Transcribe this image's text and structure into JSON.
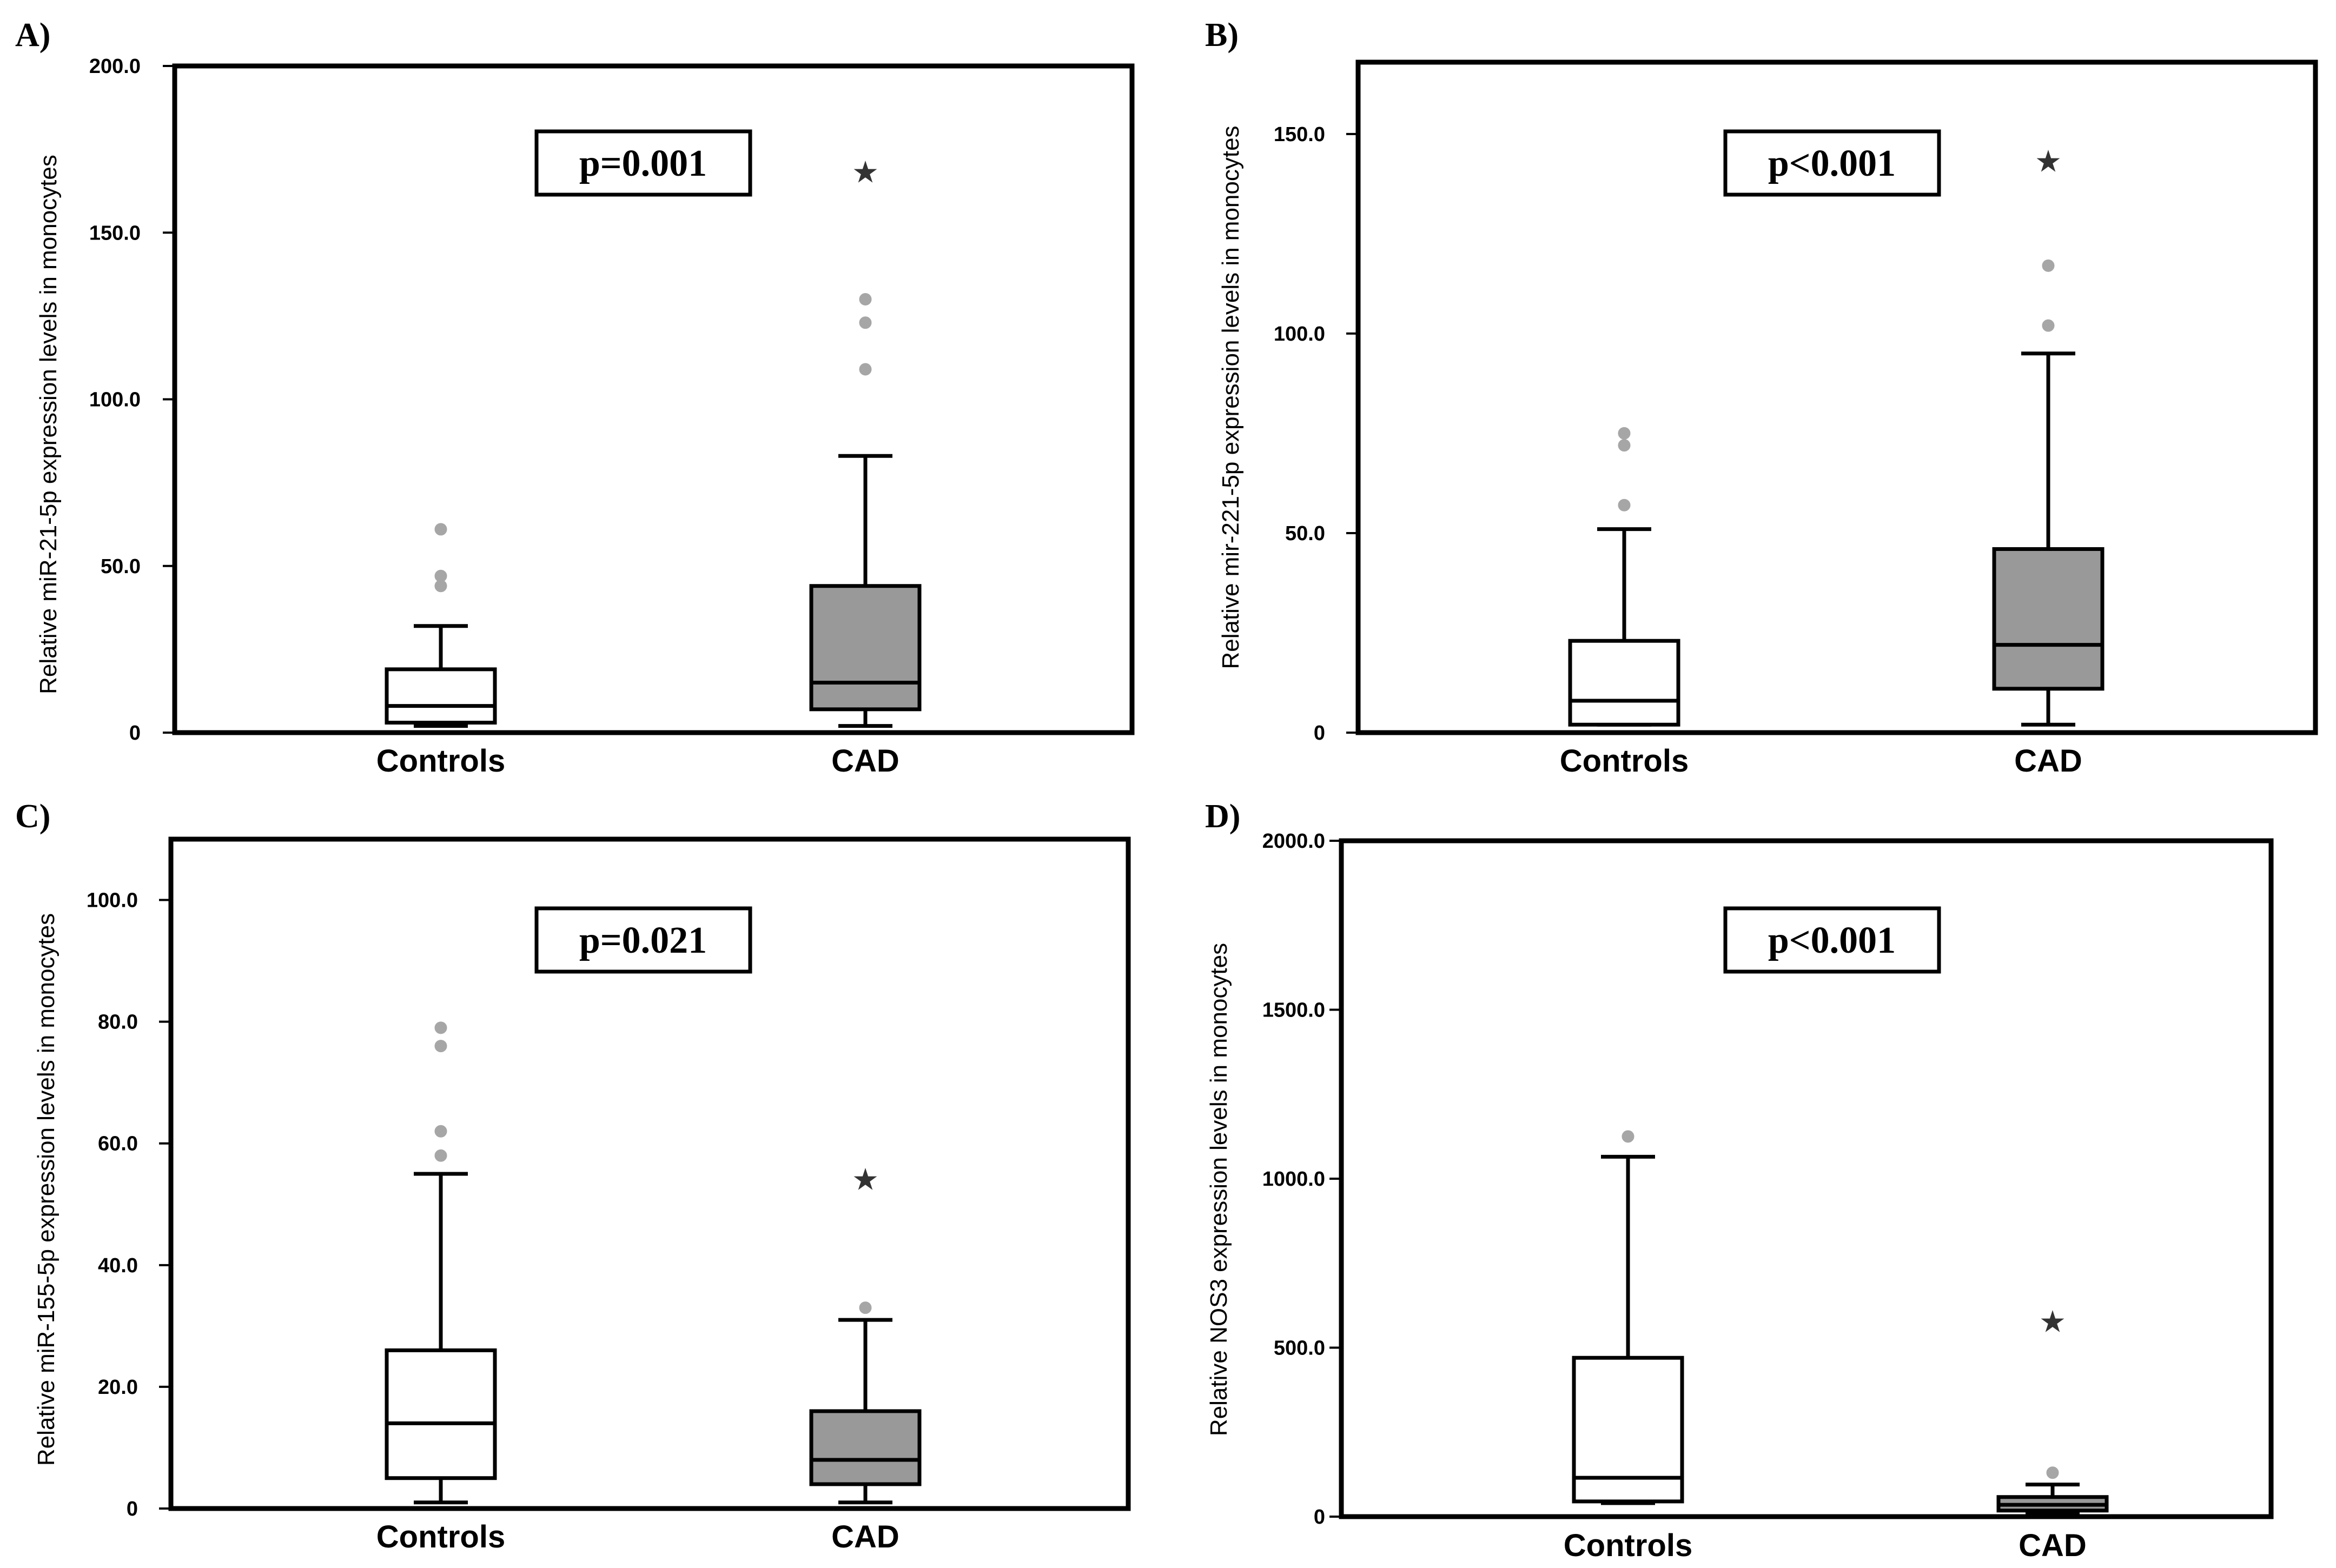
{
  "figure": {
    "categories": [
      "Controls",
      "CAD"
    ],
    "colors": {
      "axis": "#000000",
      "controls_box": "#ffffff",
      "cad_box": "#999999",
      "outlier_circle": "#a6a6a6",
      "extreme_star": "#333333"
    }
  },
  "chart_data": [
    {
      "type": "box",
      "panel": "A)",
      "ylabel": "Relative miR-21-5p expression levels in monocytes",
      "ylim": [
        0,
        200
      ],
      "yticks": [
        0,
        50,
        100,
        150,
        200
      ],
      "yticklabels": [
        "0",
        "50.0",
        "100.0",
        "150.0",
        "200.0"
      ],
      "pvalue": "p=0.001",
      "series": [
        {
          "name": "Controls",
          "whisker_low": 2,
          "q1": 3,
          "median": 8,
          "q3": 19,
          "whisker_high": 32,
          "outliers": [
            44,
            47,
            61
          ],
          "extremes": []
        },
        {
          "name": "CAD",
          "whisker_low": 2,
          "q1": 7,
          "median": 15,
          "q3": 44,
          "whisker_high": 83,
          "outliers": [
            109,
            123,
            130
          ],
          "extremes": [
            168
          ]
        }
      ]
    },
    {
      "type": "box",
      "panel": "B)",
      "ylabel": "Relative mir-221-5p expression levels in monocytes",
      "ylim": [
        0,
        168
      ],
      "yticks": [
        0,
        50,
        100,
        150
      ],
      "yticklabels": [
        "0",
        "50.0",
        "100.0",
        "150.0"
      ],
      "pvalue": "p<0.001",
      "series": [
        {
          "name": "Controls",
          "whisker_low": 2,
          "q1": 2,
          "median": 8,
          "q3": 23,
          "whisker_high": 51,
          "outliers": [
            57,
            72,
            75
          ],
          "extremes": []
        },
        {
          "name": "CAD",
          "whisker_low": 2,
          "q1": 11,
          "median": 22,
          "q3": 46,
          "whisker_high": 95,
          "outliers": [
            102,
            117
          ],
          "extremes": [
            143
          ]
        }
      ]
    },
    {
      "type": "box",
      "panel": "C)",
      "ylabel": "Relative miR-155-5p expression levels in monocytes",
      "ylim": [
        0,
        110
      ],
      "yticks": [
        0,
        20,
        40,
        60,
        80,
        100
      ],
      "yticklabels": [
        "0",
        "20.0",
        "40.0",
        "60.0",
        "80.0",
        "100.0"
      ],
      "pvalue": "p=0.021",
      "series": [
        {
          "name": "Controls",
          "whisker_low": 1,
          "q1": 5,
          "median": 14,
          "q3": 26,
          "whisker_high": 55,
          "outliers": [
            58,
            62,
            76,
            79
          ],
          "extremes": []
        },
        {
          "name": "CAD",
          "whisker_low": 1,
          "q1": 4,
          "median": 8,
          "q3": 16,
          "whisker_high": 31,
          "outliers": [
            33
          ],
          "extremes": [
            54
          ]
        }
      ]
    },
    {
      "type": "box",
      "panel": "D)",
      "ylabel": "Relative NOS3 expression levels in monocytes",
      "ylim": [
        0,
        2000
      ],
      "yticks": [
        0,
        500,
        1000,
        1500,
        2000
      ],
      "yticklabels": [
        "0",
        "500.0",
        "1000.0",
        "1500.0",
        "2000.0"
      ],
      "pvalue": "p<0.001",
      "series": [
        {
          "name": "Controls",
          "whisker_low": 40,
          "q1": 45,
          "median": 115,
          "q3": 470,
          "whisker_high": 1065,
          "outliers": [
            1125
          ],
          "extremes": []
        },
        {
          "name": "CAD",
          "whisker_low": 10,
          "q1": 18,
          "median": 35,
          "q3": 58,
          "whisker_high": 95,
          "outliers": [
            130
          ],
          "extremes": [
            575
          ]
        }
      ]
    }
  ]
}
